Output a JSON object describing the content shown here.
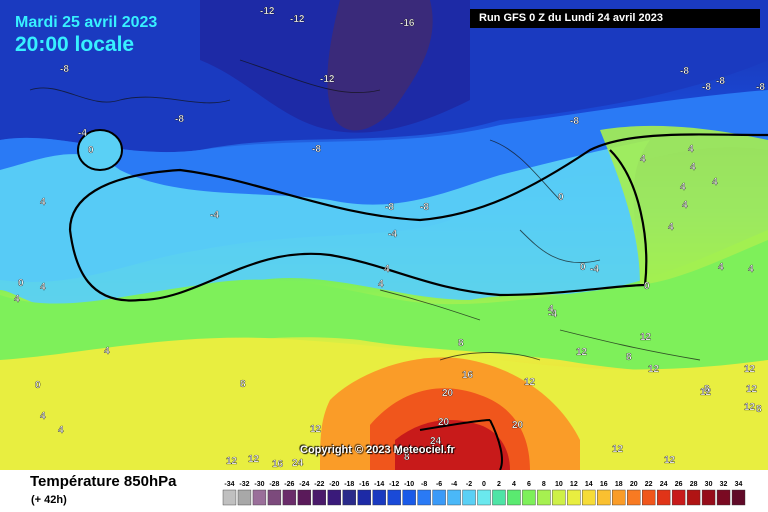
{
  "header": {
    "date": "Mardi 25 avril 2023",
    "time": "20:00 locale",
    "run": "Run GFS 0 Z du Lundi 24 avril 2023"
  },
  "footer": {
    "field": "Température 850hPa",
    "lead": "(+ 42h)",
    "copyright": "Copyright © 2023 Meteociel.fr"
  },
  "scale": {
    "ticks": [
      "-34",
      "-32",
      "-30",
      "-28",
      "-26",
      "-24",
      "-22",
      "-20",
      "-18",
      "-16",
      "-14",
      "-12",
      "-10",
      "-8",
      "-6",
      "-4",
      "-2",
      "0",
      "2",
      "4",
      "6",
      "8",
      "10",
      "12",
      "14",
      "16",
      "18",
      "20",
      "22",
      "24",
      "26",
      "28",
      "30",
      "32",
      "34"
    ],
    "colors": [
      "#c0c0c0",
      "#a8a8a8",
      "#9a6f9a",
      "#7c4a7c",
      "#6a2c6a",
      "#5a1a5a",
      "#4a1a6a",
      "#3a1a7a",
      "#2a2a8a",
      "#1d2aa6",
      "#1a3ac0",
      "#1a4ad8",
      "#1a5ae8",
      "#2a7af5",
      "#3a9af8",
      "#4ab8f8",
      "#5ad0f5",
      "#6ae8ee",
      "#4ee4a6",
      "#5aea70",
      "#7ef05a",
      "#a6f050",
      "#cef048",
      "#e8ee40",
      "#f6dc38",
      "#fac030",
      "#fa9c28",
      "#f87a22",
      "#f0561c",
      "#e03418",
      "#c81a1a",
      "#b01414",
      "#960c1a",
      "#7a0a22",
      "#600a28"
    ]
  },
  "contour_labels": [
    "-12",
    "-12",
    "-16",
    "-8",
    "-12",
    "-8",
    "-8",
    "-8",
    "-8",
    "-8",
    "-8",
    "-8",
    "-8",
    "-4",
    "0",
    "4",
    "-4",
    "-8",
    "-4",
    "0",
    "4",
    "4",
    "-4",
    "0",
    "0",
    "-4",
    "4",
    "4",
    "4",
    "4",
    "4",
    "4",
    "0",
    "4",
    "4",
    "4",
    "4",
    "4",
    "4",
    "0",
    "4",
    "4",
    "8",
    "12",
    "16",
    "20",
    "20",
    "24",
    "20",
    "12",
    "12",
    "8",
    "12",
    "12",
    "12",
    "8",
    "12",
    "8",
    "12",
    "12",
    "16",
    "24",
    "8",
    "8",
    "12",
    "12",
    "12",
    "12",
    "8",
    "4"
  ]
}
